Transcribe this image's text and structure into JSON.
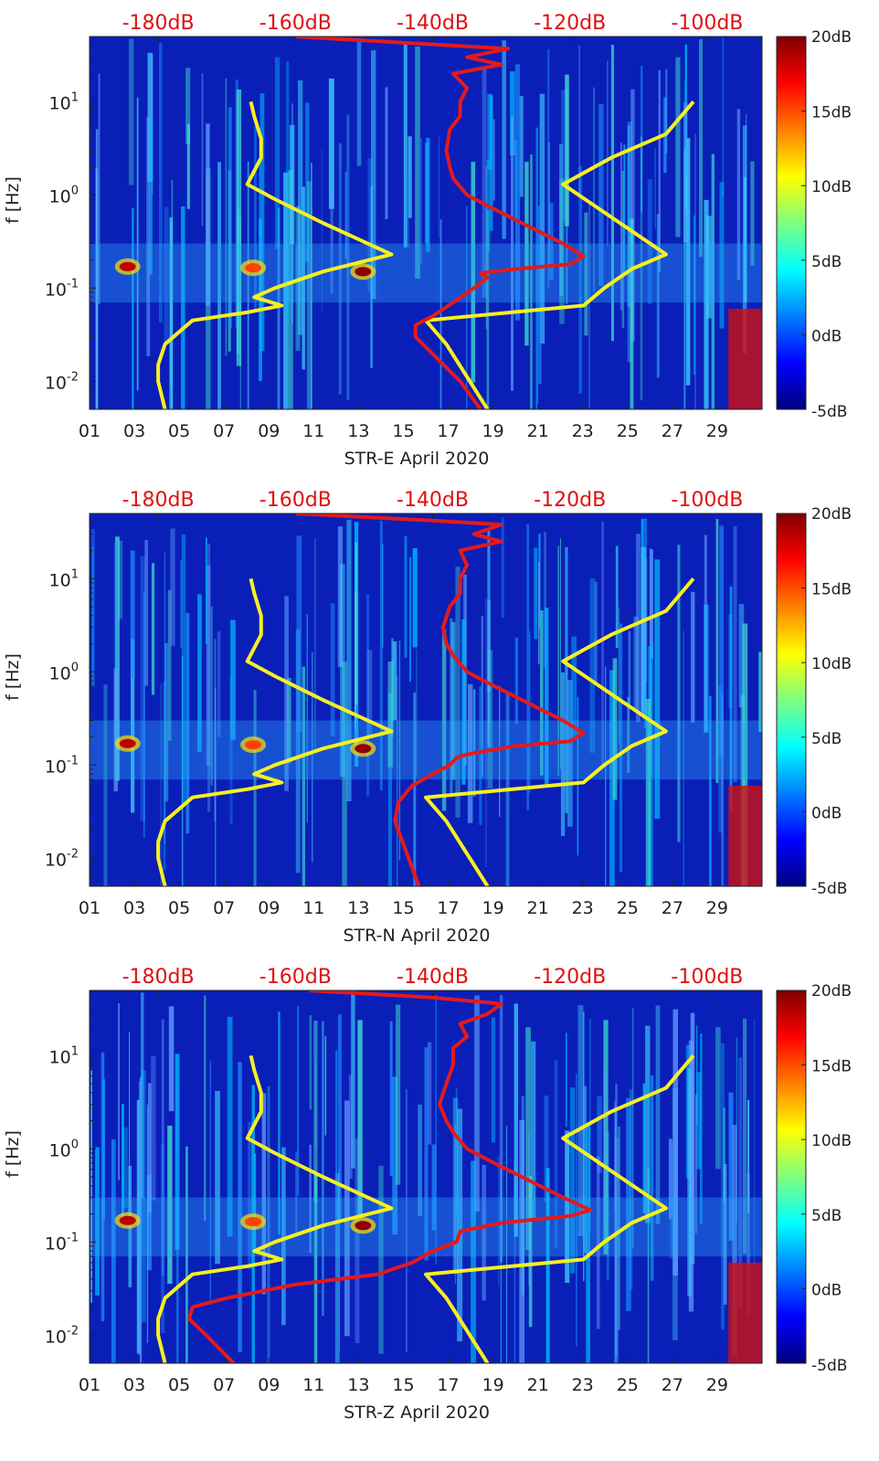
{
  "figure": {
    "panels": [
      {
        "id": "E",
        "xlabel": "STR-E April 2020",
        "ylabel": "f [Hz]",
        "red_line": [
          [
            -133,
            0.005
          ],
          [
            -136,
            0.01
          ],
          [
            -142.5,
            0.03
          ],
          [
            -142.5,
            0.04
          ],
          [
            -140,
            0.05
          ],
          [
            -137,
            0.07
          ],
          [
            -134,
            0.1
          ],
          [
            -132,
            0.13
          ],
          [
            -133,
            0.145
          ],
          [
            -128,
            0.16
          ],
          [
            -120,
            0.18
          ],
          [
            -118,
            0.22
          ],
          [
            -121,
            0.3
          ],
          [
            -127,
            0.5
          ],
          [
            -131,
            0.7
          ],
          [
            -135,
            1.0
          ],
          [
            -137,
            1.5
          ],
          [
            -137.5,
            2.0
          ],
          [
            -138,
            3.0
          ],
          [
            -137.5,
            5.0
          ],
          [
            -136,
            7.0
          ],
          [
            -136,
            10.0
          ],
          [
            -135,
            14.0
          ],
          [
            -137,
            20.0
          ],
          [
            -130,
            25.0
          ],
          [
            -135,
            30.0
          ],
          [
            -129,
            37.0
          ],
          [
            -137,
            40.0
          ],
          [
            -160,
            50.0
          ]
        ],
        "yellow_left": [
          [
            -179,
            0.005
          ],
          [
            -180,
            0.01
          ],
          [
            -180,
            0.015
          ],
          [
            -179,
            0.025
          ],
          [
            -175,
            0.045
          ],
          [
            -167,
            0.055
          ],
          [
            -162,
            0.065
          ],
          [
            -166,
            0.08
          ],
          [
            -163,
            0.1
          ],
          [
            -156,
            0.15
          ],
          [
            -146,
            0.23
          ],
          [
            -156,
            0.5
          ],
          [
            -163,
            0.9
          ],
          [
            -167,
            1.3
          ],
          [
            -165,
            2.5
          ],
          [
            -165,
            4.0
          ],
          [
            -166,
            7.0
          ],
          [
            -166.5,
            10.0
          ]
        ],
        "yellow_right": [
          [
            -132,
            0.005
          ],
          [
            -138,
            0.025
          ],
          [
            -141,
            0.045
          ],
          [
            -118,
            0.065
          ],
          [
            -115,
            0.1
          ],
          [
            -111,
            0.16
          ],
          [
            -106,
            0.23
          ],
          [
            -121,
            1.3
          ],
          [
            -114,
            2.5
          ],
          [
            -106,
            4.5
          ],
          [
            -102,
            10.0
          ]
        ]
      },
      {
        "id": "N",
        "xlabel": "STR-N April 2020",
        "ylabel": "f [Hz]",
        "red_line": [
          [
            -142,
            0.005
          ],
          [
            -143.5,
            0.01
          ],
          [
            -145.5,
            0.025
          ],
          [
            -145,
            0.04
          ],
          [
            -143,
            0.06
          ],
          [
            -140,
            0.08
          ],
          [
            -137.5,
            0.1
          ],
          [
            -136.5,
            0.12
          ],
          [
            -135,
            0.13
          ],
          [
            -128,
            0.16
          ],
          [
            -120,
            0.18
          ],
          [
            -118,
            0.22
          ],
          [
            -121,
            0.3
          ],
          [
            -127,
            0.5
          ],
          [
            -131,
            0.7
          ],
          [
            -135,
            1.0
          ],
          [
            -137,
            1.5
          ],
          [
            -138,
            2.0
          ],
          [
            -138.5,
            3.0
          ],
          [
            -137.5,
            5.0
          ],
          [
            -136,
            7.0
          ],
          [
            -136,
            10.0
          ],
          [
            -135,
            14.0
          ],
          [
            -136,
            20.0
          ],
          [
            -130,
            25.0
          ],
          [
            -134,
            30.0
          ],
          [
            -130,
            38.0
          ],
          [
            -140,
            42.0
          ],
          [
            -160,
            50.0
          ]
        ],
        "yellow_left": [
          [
            -179,
            0.005
          ],
          [
            -180,
            0.01
          ],
          [
            -180,
            0.015
          ],
          [
            -179,
            0.025
          ],
          [
            -175,
            0.045
          ],
          [
            -167,
            0.055
          ],
          [
            -162,
            0.065
          ],
          [
            -166,
            0.08
          ],
          [
            -163,
            0.1
          ],
          [
            -156,
            0.15
          ],
          [
            -146,
            0.23
          ],
          [
            -156,
            0.5
          ],
          [
            -163,
            0.9
          ],
          [
            -167,
            1.3
          ],
          [
            -165,
            2.5
          ],
          [
            -165,
            4.0
          ],
          [
            -166,
            7.0
          ],
          [
            -166.5,
            10.0
          ]
        ],
        "yellow_right": [
          [
            -132,
            0.005
          ],
          [
            -138,
            0.025
          ],
          [
            -141,
            0.045
          ],
          [
            -118,
            0.065
          ],
          [
            -115,
            0.1
          ],
          [
            -111,
            0.16
          ],
          [
            -106,
            0.23
          ],
          [
            -121,
            1.3
          ],
          [
            -114,
            2.5
          ],
          [
            -106,
            4.5
          ],
          [
            -102,
            10.0
          ]
        ]
      },
      {
        "id": "Z",
        "xlabel": "STR-Z April 2020",
        "ylabel": "f [Hz]",
        "red_line": [
          [
            -169,
            0.005
          ],
          [
            -173,
            0.01
          ],
          [
            -175.5,
            0.015
          ],
          [
            -175,
            0.02
          ],
          [
            -170,
            0.025
          ],
          [
            -160,
            0.035
          ],
          [
            -148,
            0.045
          ],
          [
            -143,
            0.06
          ],
          [
            -140,
            0.08
          ],
          [
            -136.5,
            0.1
          ],
          [
            -136,
            0.13
          ],
          [
            -130,
            0.16
          ],
          [
            -120,
            0.19
          ],
          [
            -117,
            0.22
          ],
          [
            -121,
            0.3
          ],
          [
            -127,
            0.5
          ],
          [
            -131,
            0.7
          ],
          [
            -135,
            1.0
          ],
          [
            -137,
            1.5
          ],
          [
            -138,
            2.0
          ],
          [
            -139,
            3.0
          ],
          [
            -138,
            5.0
          ],
          [
            -137,
            8.0
          ],
          [
            -137,
            12.0
          ],
          [
            -135,
            16.0
          ],
          [
            -136,
            22.0
          ],
          [
            -132,
            28.0
          ],
          [
            -130,
            36.0
          ],
          [
            -140,
            42.0
          ],
          [
            -158,
            50.0
          ]
        ],
        "yellow_left": [
          [
            -179,
            0.005
          ],
          [
            -180,
            0.01
          ],
          [
            -180,
            0.015
          ],
          [
            -179,
            0.025
          ],
          [
            -175,
            0.045
          ],
          [
            -167,
            0.055
          ],
          [
            -162,
            0.065
          ],
          [
            -166,
            0.08
          ],
          [
            -163,
            0.1
          ],
          [
            -156,
            0.15
          ],
          [
            -146,
            0.23
          ],
          [
            -156,
            0.5
          ],
          [
            -163,
            0.9
          ],
          [
            -167,
            1.3
          ],
          [
            -165,
            2.5
          ],
          [
            -165,
            4.0
          ],
          [
            -166,
            7.0
          ],
          [
            -166.5,
            10.0
          ]
        ],
        "yellow_right": [
          [
            -132,
            0.005
          ],
          [
            -138,
            0.025
          ],
          [
            -141,
            0.045
          ],
          [
            -118,
            0.065
          ],
          [
            -115,
            0.1
          ],
          [
            -111,
            0.16
          ],
          [
            -106,
            0.23
          ],
          [
            -121,
            1.3
          ],
          [
            -114,
            2.5
          ],
          [
            -106,
            4.5
          ],
          [
            -102,
            10.0
          ]
        ]
      }
    ]
  },
  "chart_data": {
    "type": "heatmap",
    "title": "",
    "x_axis": {
      "unit": "day of April 2020",
      "range": [
        1,
        31
      ],
      "ticks": [
        1,
        3,
        5,
        7,
        9,
        11,
        13,
        15,
        17,
        19,
        21,
        23,
        25,
        27,
        29
      ],
      "tick_labels": [
        "01",
        "03",
        "05",
        "07",
        "09",
        "11",
        "13",
        "15",
        "17",
        "19",
        "21",
        "23",
        "25",
        "27",
        "29"
      ]
    },
    "y_axis": {
      "label": "f [Hz]",
      "scale": "log",
      "range": [
        0.005,
        50
      ],
      "ticks": [
        0.01,
        0.1,
        1,
        10
      ],
      "tick_labels": [
        {
          "base": "10",
          "exp": "-2"
        },
        {
          "base": "10",
          "exp": "-1"
        },
        {
          "base": "10",
          "exp": "0"
        },
        {
          "base": "10",
          "exp": "1"
        }
      ]
    },
    "top_axis": {
      "unit": "dB",
      "range": [
        -190,
        -92
      ],
      "ticks": [
        -180,
        -160,
        -140,
        -120,
        -100
      ],
      "tick_labels": [
        "-180dB",
        "-160dB",
        "-140dB",
        "-120dB",
        "-100dB"
      ],
      "color": "#e01010"
    },
    "colorbar": {
      "range": [
        -5,
        20
      ],
      "ticks": [
        -5,
        0,
        5,
        10,
        15,
        20
      ],
      "tick_labels": [
        "-5dB",
        "0dB",
        "5dB",
        "10dB",
        "15dB",
        "20dB"
      ],
      "colormap": "jet"
    },
    "line_colors": {
      "red": "#e31a1c",
      "yellow": "#f7f01e"
    },
    "panel_labels": [
      "STR-E April 2020",
      "STR-N April 2020",
      "STR-Z April 2020"
    ]
  }
}
